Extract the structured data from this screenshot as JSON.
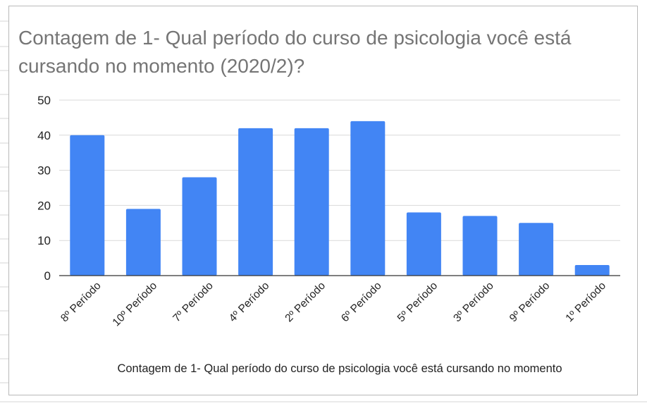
{
  "chart_data": {
    "type": "bar",
    "title": "Contagem de 1- Qual período do curso de psicologia você está cursando no momento (2020/2)?",
    "xlabel": "Contagem de 1- Qual período do curso de psicologia você está cursando no momento",
    "ylabel": "",
    "categories": [
      "8º Período",
      "10º Período",
      "7º Período",
      "4º Período",
      "2º Período",
      "6º Período",
      "5º Período",
      "3º Período",
      "9º Período",
      "1º Período"
    ],
    "values": [
      40,
      19,
      28,
      42,
      42,
      44,
      18,
      17,
      15,
      3
    ],
    "ylim": [
      0,
      50
    ],
    "yticks": [
      "0",
      "10",
      "20",
      "30",
      "40",
      "50"
    ],
    "grid": true,
    "legend": "none",
    "bar_color": "#4285f4"
  }
}
